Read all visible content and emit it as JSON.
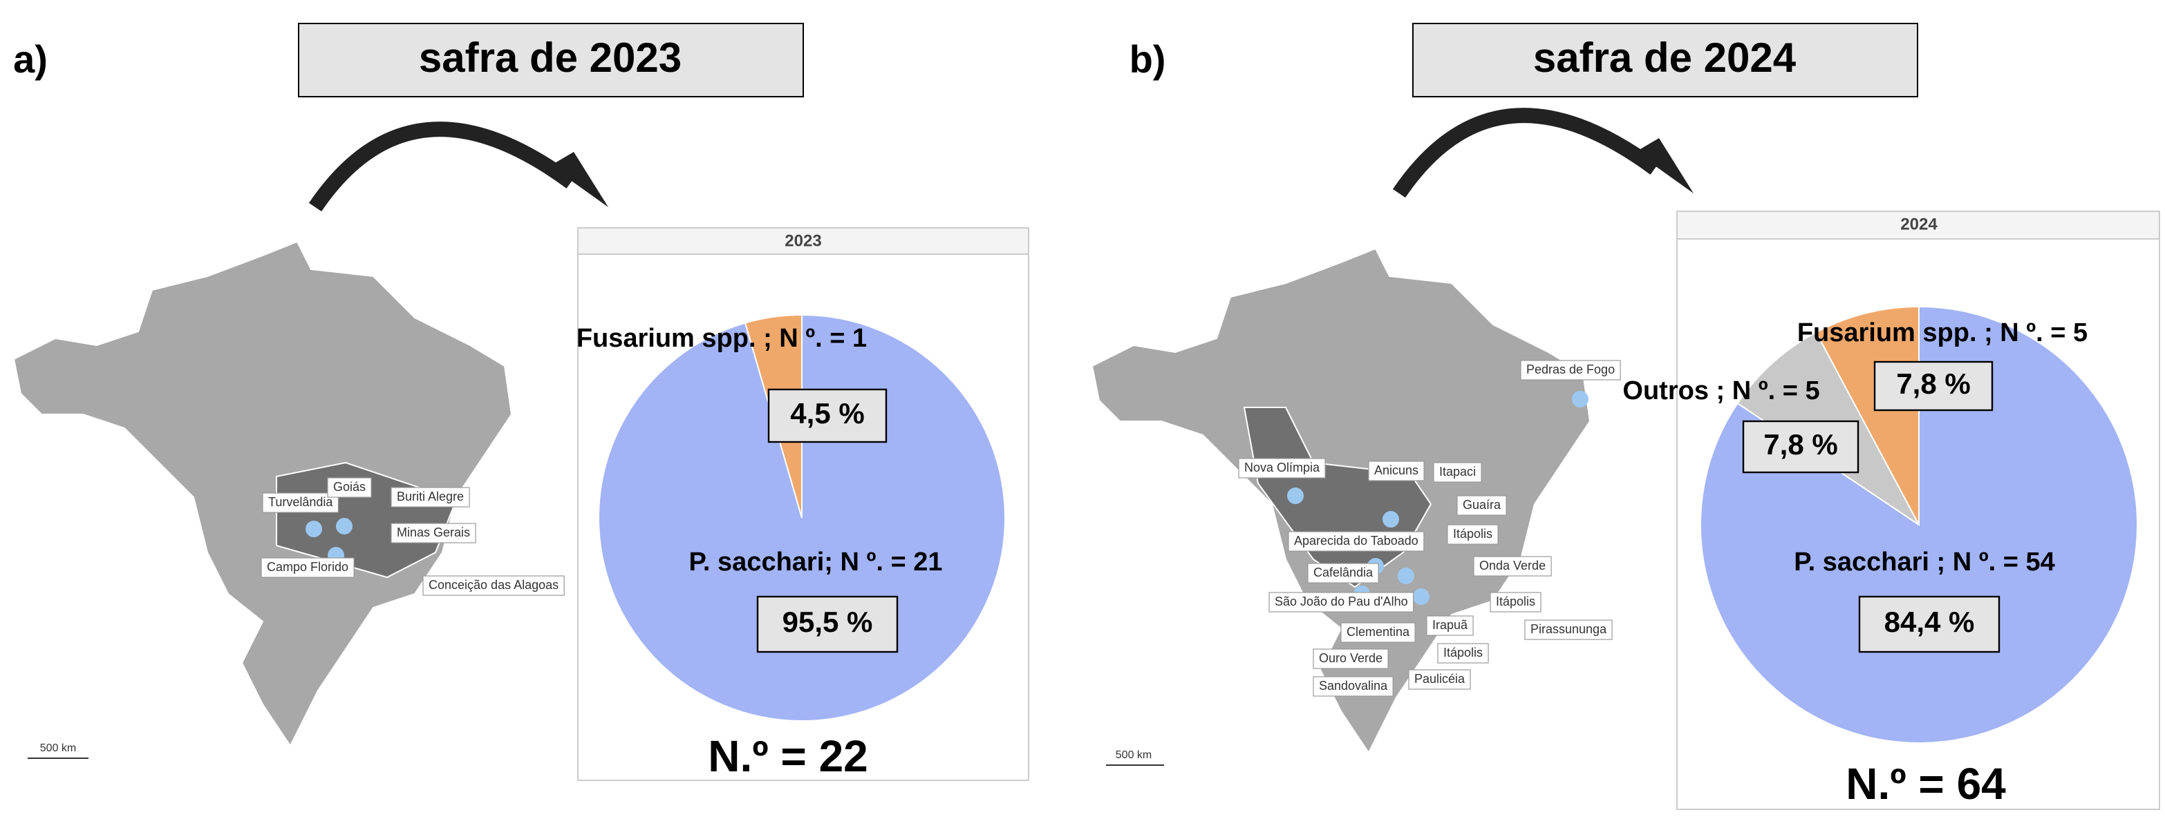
{
  "panels": [
    {
      "letter": "a)",
      "header": "safra de 2023",
      "scale": "500 km",
      "map_labels": [
        "Turvelândia",
        "Goiás",
        "Buriti Alegre",
        "Minas Gerais",
        "Campo Florido",
        "Conceição das Alagoas"
      ]
    },
    {
      "letter": "b)",
      "header": "safra de 2024",
      "scale": "500 km",
      "map_labels": [
        "Pedras de Fogo",
        "Nova Olímpia",
        "Anicuns",
        "Itapaci",
        "Guaíra",
        "Itápolis",
        "Aparecida do Taboado",
        "Onda Verde",
        "Cafelândia",
        "Itápolis",
        "São João do Pau d'Alho",
        "Clementina",
        "Irapuã",
        "Pirassununga",
        "Itápolis",
        "Ouro Verde",
        "Sandovalina",
        "Paulicéia"
      ]
    }
  ],
  "chart_data": [
    {
      "type": "pie",
      "title": "2023",
      "categories": [
        "Fusarium spp. ; N º. = 1",
        "P. sacchari; N º. = 21"
      ],
      "values": [
        4.5,
        95.5
      ],
      "value_labels": [
        "4,5 %",
        "95,5 %"
      ],
      "colors": [
        "#f0a86a",
        "#a2b4f5"
      ],
      "total_label": "N.º = 22"
    },
    {
      "type": "pie",
      "title": "2024",
      "categories": [
        "Fusarium spp. ; N º. = 5",
        "Outros ; N º. = 5",
        "P. sacchari ; N º. = 54"
      ],
      "values": [
        7.8,
        7.8,
        84.4
      ],
      "value_labels": [
        "7,8 %",
        "7,8 %",
        "84,4 %"
      ],
      "colors": [
        "#f0a86a",
        "#c8c8c8",
        "#a2b4f5"
      ],
      "total_label": "N.º = 64"
    }
  ]
}
